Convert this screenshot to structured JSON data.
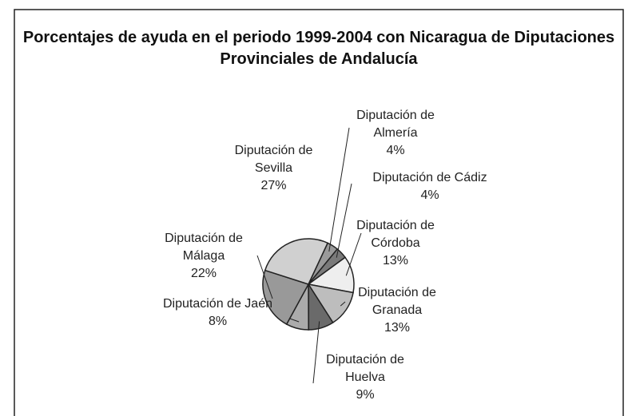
{
  "chart_data": {
    "type": "pie",
    "title": "Porcentajes de ayuda en el periodo 1999-2004 con Nicaragua de Diputaciones Provinciales de Andalucía",
    "categories": [
      "Diputación de Almería",
      "Diputación de Cádiz",
      "Diputación de Córdoba",
      "Diputación de Granada",
      "Diputación de Huelva",
      "Diputación de Jaén",
      "Diputación de Málaga",
      "Diputación de Sevilla"
    ],
    "values": [
      4,
      4,
      13,
      13,
      9,
      8,
      22,
      27
    ],
    "value_labels": [
      "4%",
      "4%",
      "13%",
      "13%",
      "9%",
      "8%",
      "22%",
      "27%"
    ],
    "colors": [
      "#9a9a9a",
      "#7a7a7a",
      "#eeeeee",
      "#bdbdbd",
      "#6a6a6a",
      "#ababab",
      "#999999",
      "#d0d0d0"
    ]
  }
}
